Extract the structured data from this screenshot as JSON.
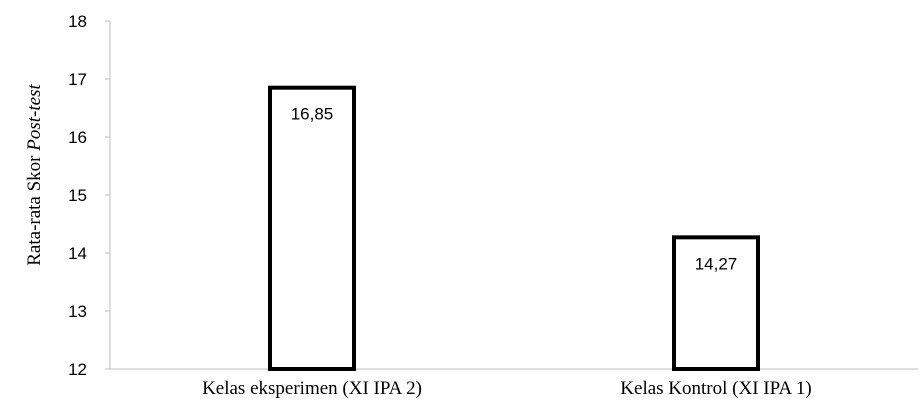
{
  "chart_data": {
    "type": "bar",
    "categories": [
      "Kelas eksperimen (XI IPA 2)",
      "Kelas Kontrol (XI IPA 1)"
    ],
    "values": [
      16.85,
      14.27
    ],
    "data_labels": [
      "16,85",
      "14,27"
    ],
    "ylabel_prefix": "Rata-rata Skor ",
    "ylabel_italic": "Post-test",
    "xlabel": "",
    "ylim": [
      12,
      18
    ],
    "yticks": [
      12,
      13,
      14,
      15,
      16,
      17,
      18
    ],
    "grid": false,
    "legend": "none",
    "bar_fill": "#ffffff",
    "bar_stroke": "#000000"
  }
}
